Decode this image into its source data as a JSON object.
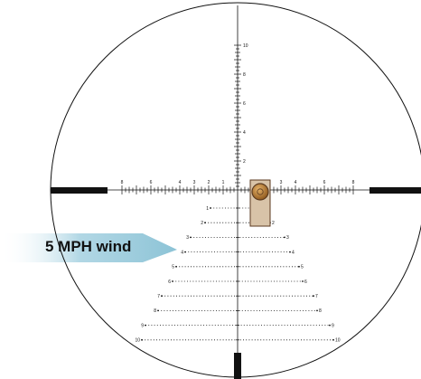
{
  "reticle": {
    "wind_label": "5 MPH wind",
    "vertical_labels_up": [
      "2",
      "4",
      "6",
      "8",
      "10"
    ],
    "horizontal_labels_left": [
      "8",
      "6",
      "4",
      "3",
      "2",
      "1"
    ],
    "horizontal_labels_right": [
      "1",
      "2",
      "3",
      "4",
      "6",
      "8"
    ],
    "holdover_rows": [
      {
        "left": "1",
        "right": "1"
      },
      {
        "left": "2",
        "right": "2"
      },
      {
        "left": "3",
        "right": "3"
      },
      {
        "left": "4",
        "right": "4"
      },
      {
        "left": "5",
        "right": "5"
      },
      {
        "left": "6",
        "right": "6"
      },
      {
        "left": "7",
        "right": "7"
      },
      {
        "left": "8",
        "right": "8"
      },
      {
        "left": "9",
        "right": "9"
      },
      {
        "left": "10",
        "right": "10"
      }
    ],
    "colors": {
      "line": "#111111",
      "wind_band": "#a9d3e2",
      "target_box": "#d8c3a8",
      "target_outline": "#5b3a1f",
      "target_ball": "#a66a22"
    }
  }
}
